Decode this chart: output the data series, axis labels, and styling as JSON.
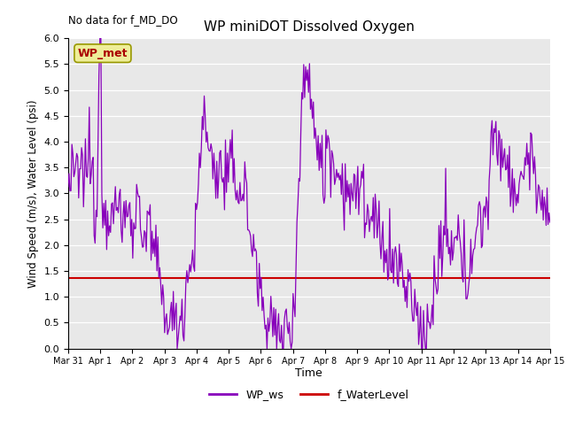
{
  "title": "WP miniDOT Dissolved Oxygen",
  "top_left_text": "No data for f_MD_DO",
  "ylabel": "Wind Speed (m/s), Water Level (psi)",
  "xlabel": "Time",
  "ylim": [
    0.0,
    6.0
  ],
  "yticks": [
    0.0,
    0.5,
    1.0,
    1.5,
    2.0,
    2.5,
    3.0,
    3.5,
    4.0,
    4.5,
    5.0,
    5.5,
    6.0
  ],
  "bg_color": "#e8e8e8",
  "legend_labels": [
    "WP_ws",
    "f_WaterLevel"
  ],
  "wp_ws_color": "#8800bb",
  "f_waterlevel_color": "#cc0000",
  "annotation_box_text": "WP_met",
  "annotation_box_facecolor": "#eeee99",
  "annotation_box_edgecolor": "#999900",
  "annotation_text_color": "#aa0000",
  "water_level_value": 1.37,
  "x_tick_labels": [
    "Mar 31",
    "Apr 1",
    "Apr 2",
    "Apr 3",
    "Apr 4",
    "Apr 5",
    "Apr 6",
    "Apr 7",
    "Apr 8",
    "Apr 9",
    "Apr 10",
    "Apr 11",
    "Apr 12",
    "Apr 13",
    "Apr 14",
    "Apr 15"
  ],
  "n_points": 500
}
